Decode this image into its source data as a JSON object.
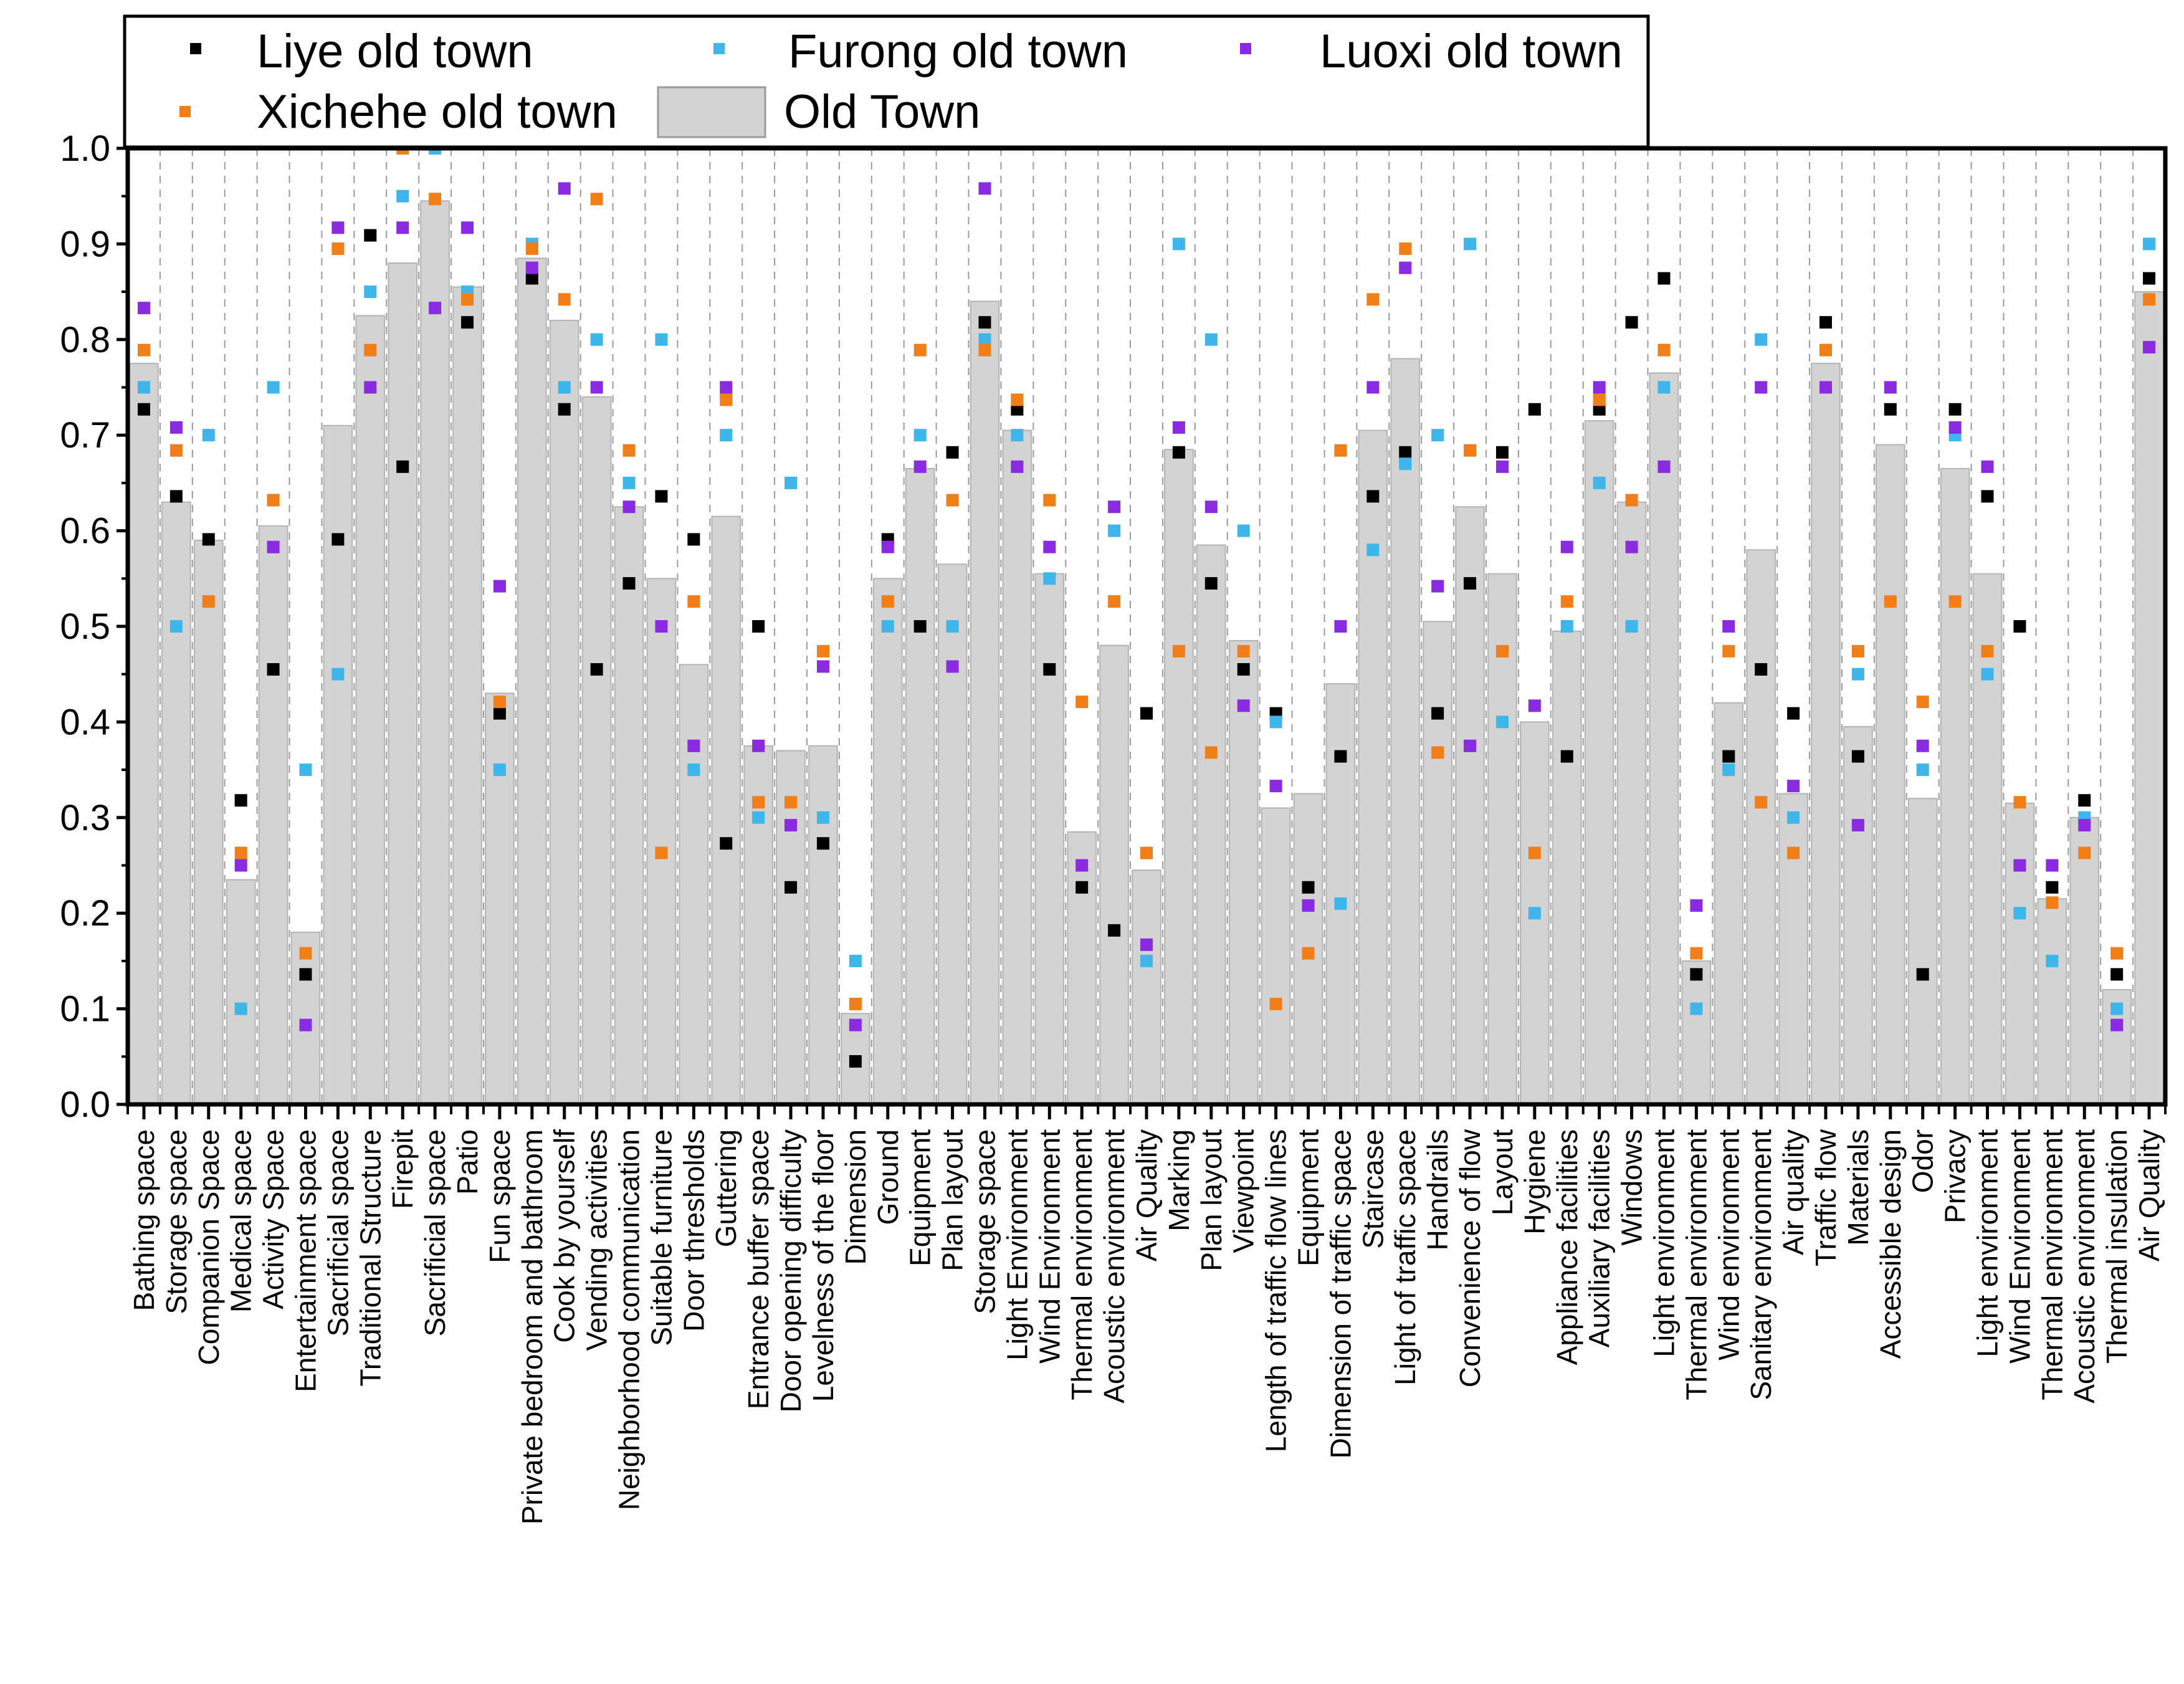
{
  "chart_data": {
    "type": "bar",
    "title": "",
    "xlabel": "",
    "ylabel": "",
    "ylim": [
      0,
      1.0
    ],
    "yticks": [
      "0.0",
      "0.1",
      "0.2",
      "0.3",
      "0.4",
      "0.5",
      "0.6",
      "0.7",
      "0.8",
      "0.9",
      "1.0"
    ],
    "grid": "vertical dashed lines between categories",
    "legend_position": "top-left",
    "categories": [
      "Bathing space",
      "Storage space",
      "Companion Space",
      "Medical space",
      "Activity Space",
      "Entertainment space",
      "Sacrificial space",
      "Traditional Structure",
      "Firepit",
      "Sacrificial space",
      "Patio",
      "Fun space",
      "Private bedroom and bathroom",
      "Cook by yourself",
      "Vending activities",
      "Neighborhood communication",
      "Suitable furniture",
      "Door thresholds",
      "Guttering",
      "Entrance buffer space",
      "Door opening difficulty",
      "Levelness of the floor",
      "Dimension",
      "Ground",
      "Equipment",
      "Plan layout",
      "Storage space",
      "Light Environment",
      "Wind Environment",
      "Thermal environment",
      "Acoustic environment",
      "Air Quality",
      "Marking",
      "Plan layout",
      "Viewpoint",
      "Length of traffic flow lines",
      "Equipment",
      "Dimension of traffic space",
      "Staircase",
      "Light of traffic space",
      "Handrails",
      "Convenience of flow",
      "Layout",
      "Hygiene",
      "Appliance facilities",
      "Auxiliary facilities",
      "Windows",
      "Light environment",
      "Thermal environment",
      "Wind environment",
      "Sanitary environment",
      "Air quality",
      "Traffic flow",
      "Materials",
      "Accessible design",
      "Odor",
      "Privacy",
      "Light environment",
      "Wind Environment",
      "Thermal environment",
      "Acoustic environment",
      "Thermal insulation",
      "Air Quality"
    ],
    "series": [
      {
        "name": "Old Town",
        "kind": "bar",
        "color": "#d3d3d3",
        "values": [
          0.775,
          0.63,
          0.59,
          0.235,
          0.605,
          0.18,
          0.71,
          0.825,
          0.88,
          0.945,
          0.855,
          0.43,
          0.885,
          0.82,
          0.74,
          0.625,
          0.55,
          0.46,
          0.615,
          0.375,
          0.37,
          0.375,
          0.095,
          0.55,
          0.665,
          0.565,
          0.84,
          0.705,
          0.555,
          0.285,
          0.48,
          0.245,
          0.685,
          0.585,
          0.485,
          0.31,
          0.325,
          0.44,
          0.705,
          0.78,
          0.505,
          0.625,
          0.555,
          0.4,
          0.495,
          0.715,
          0.63,
          0.765,
          0.15,
          0.42,
          0.58,
          0.325,
          0.775,
          0.395,
          0.69,
          0.32,
          0.665,
          0.555,
          0.315,
          0.215,
          0.3,
          0.12,
          0.85
        ]
      },
      {
        "name": "Liye old town",
        "kind": "marker",
        "color": "#000000",
        "values": [
          0.727,
          0.636,
          0.591,
          0.318,
          0.455,
          0.136,
          0.591,
          0.909,
          0.667,
          null,
          0.818,
          0.409,
          0.864,
          0.727,
          0.455,
          0.545,
          0.636,
          0.591,
          0.273,
          0.5,
          0.227,
          0.273,
          0.045,
          0.591,
          0.5,
          0.682,
          0.818,
          0.727,
          0.455,
          0.227,
          0.182,
          0.409,
          0.682,
          0.545,
          0.455,
          0.409,
          0.227,
          0.364,
          0.636,
          0.682,
          0.409,
          0.545,
          0.682,
          0.727,
          0.364,
          0.727,
          0.818,
          0.864,
          0.136,
          0.364,
          0.455,
          0.409,
          0.818,
          0.364,
          0.727,
          0.136,
          0.727,
          0.636,
          0.5,
          0.227,
          0.318,
          0.136,
          0.864
        ]
      },
      {
        "name": "Furong old town",
        "kind": "marker",
        "color": "#3fb6ea",
        "values": [
          0.75,
          0.5,
          0.7,
          0.1,
          0.75,
          0.35,
          0.45,
          0.85,
          0.95,
          1.0,
          0.85,
          0.35,
          0.9,
          0.75,
          0.8,
          0.65,
          0.8,
          0.35,
          0.7,
          0.3,
          0.65,
          0.3,
          0.15,
          0.5,
          0.7,
          0.5,
          0.8,
          0.7,
          0.55,
          null,
          0.6,
          0.15,
          0.9,
          0.8,
          0.6,
          0.4,
          null,
          0.21,
          0.58,
          0.67,
          0.7,
          0.9,
          0.4,
          0.2,
          0.5,
          0.65,
          0.5,
          0.75,
          0.1,
          0.35,
          0.8,
          0.3,
          null,
          0.45,
          null,
          0.35,
          0.7,
          0.45,
          0.2,
          0.15,
          0.3,
          0.1,
          0.9
        ]
      },
      {
        "name": "Luoxi old town",
        "kind": "marker",
        "color": "#8a2be2",
        "values": [
          0.833,
          0.708,
          null,
          0.25,
          0.583,
          0.083,
          0.917,
          0.75,
          0.917,
          0.833,
          0.917,
          0.542,
          0.875,
          0.958,
          0.75,
          0.625,
          0.5,
          0.375,
          0.75,
          0.375,
          0.292,
          0.458,
          0.083,
          0.583,
          0.667,
          0.458,
          0.958,
          0.667,
          0.583,
          0.25,
          0.625,
          0.167,
          0.708,
          0.625,
          0.417,
          0.333,
          0.208,
          0.5,
          0.75,
          0.875,
          0.542,
          0.375,
          0.667,
          0.417,
          0.583,
          0.75,
          0.583,
          0.667,
          0.208,
          0.5,
          0.75,
          0.333,
          0.75,
          0.292,
          0.75,
          0.375,
          0.708,
          0.667,
          0.25,
          0.25,
          0.292,
          0.083,
          0.792
        ]
      },
      {
        "name": "Xichehe old town",
        "kind": "marker",
        "color": "#f07f1a",
        "values": [
          0.789,
          0.684,
          0.526,
          0.263,
          0.632,
          0.158,
          0.895,
          0.789,
          1.0,
          0.947,
          0.842,
          0.421,
          0.895,
          0.842,
          0.947,
          0.684,
          0.263,
          0.526,
          0.737,
          0.316,
          0.316,
          0.474,
          0.105,
          0.526,
          0.789,
          0.632,
          0.789,
          0.737,
          0.632,
          0.421,
          0.526,
          0.263,
          0.474,
          0.368,
          0.474,
          0.105,
          0.158,
          0.684,
          0.842,
          0.895,
          0.368,
          0.684,
          0.474,
          0.263,
          0.526,
          0.737,
          0.632,
          0.789,
          0.158,
          0.474,
          0.316,
          0.263,
          0.789,
          0.474,
          0.526,
          0.421,
          0.526,
          0.474,
          0.316,
          0.211,
          0.263,
          0.158,
          0.842
        ]
      }
    ],
    "legend": [
      {
        "label": "Liye old town",
        "series": "Liye old town"
      },
      {
        "label": "Furong old town",
        "series": "Furong old town"
      },
      {
        "label": "Luoxi old town",
        "series": "Luoxi old town"
      },
      {
        "label": "Xichehe old town",
        "series": "Xichehe old town"
      },
      {
        "label": "Old Town",
        "series": "Old Town"
      }
    ]
  }
}
